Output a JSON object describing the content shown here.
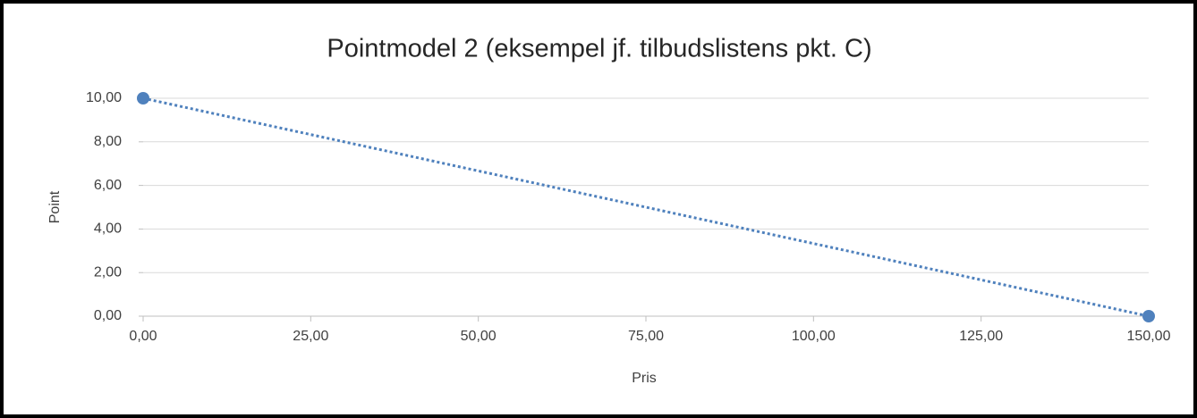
{
  "chart_data": {
    "type": "scatter",
    "title": "Pointmodel 2 (eksempel jf. tilbudslistens pkt. C)",
    "x_label": "Pris",
    "y_label": "Point",
    "x": [
      0,
      150
    ],
    "values": [
      10,
      0
    ],
    "color": "#4f81bd",
    "xlim": [
      0,
      150
    ],
    "xticks": [
      {
        "value": 0,
        "label": "0,00"
      },
      {
        "value": 25,
        "label": "25,00"
      },
      {
        "value": 50,
        "label": "50,00"
      },
      {
        "value": 75,
        "label": "75,00"
      },
      {
        "value": 100,
        "label": "100,00"
      },
      {
        "value": 125,
        "label": "125,00"
      },
      {
        "value": 150,
        "label": "150,00"
      }
    ],
    "ylim": [
      0,
      10
    ],
    "yticks": [
      {
        "value": 0,
        "label": "0,00"
      },
      {
        "value": 2,
        "label": "2,00"
      },
      {
        "value": 4,
        "label": "4,00"
      },
      {
        "value": 6,
        "label": "6,00"
      },
      {
        "value": 8,
        "label": "8,00"
      },
      {
        "value": 10,
        "label": "10,00"
      }
    ],
    "grid": true
  }
}
